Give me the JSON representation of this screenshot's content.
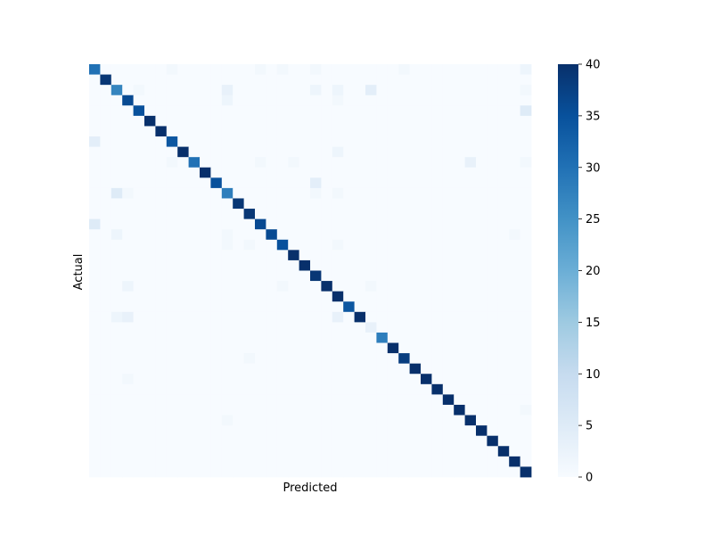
{
  "chart_data": {
    "type": "heatmap",
    "title": "",
    "xlabel": "Predicted",
    "ylabel": "Actual",
    "size": 40,
    "color_range": [
      0,
      40
    ],
    "colormap": "Blues",
    "colorbar_ticks": [
      0,
      5,
      10,
      15,
      20,
      25,
      30,
      35,
      40
    ],
    "x_tick_labels_shown": false,
    "y_tick_labels_shown": false,
    "diagonal": [
      30,
      39,
      27,
      36,
      35,
      40,
      40,
      34,
      40,
      30,
      40,
      35,
      28,
      39,
      39,
      36,
      36,
      35,
      40,
      40,
      39,
      40,
      40,
      34,
      40,
      40,
      28,
      40,
      38,
      40,
      40,
      40,
      40,
      40,
      40,
      40,
      40,
      40,
      40,
      40
    ],
    "off_diagonal": [
      [
        0,
        7,
        1
      ],
      [
        0,
        15,
        1
      ],
      [
        0,
        17,
        1
      ],
      [
        0,
        20,
        1
      ],
      [
        0,
        28,
        1
      ],
      [
        0,
        39,
        2
      ],
      [
        2,
        4,
        1
      ],
      [
        2,
        12,
        3
      ],
      [
        2,
        20,
        2
      ],
      [
        2,
        22,
        2
      ],
      [
        2,
        25,
        4
      ],
      [
        2,
        39,
        1
      ],
      [
        3,
        12,
        2
      ],
      [
        3,
        22,
        1
      ],
      [
        4,
        39,
        5
      ],
      [
        7,
        0,
        4
      ],
      [
        8,
        22,
        2
      ],
      [
        9,
        7,
        1
      ],
      [
        9,
        15,
        1
      ],
      [
        9,
        18,
        1
      ],
      [
        9,
        34,
        3
      ],
      [
        9,
        39,
        1
      ],
      [
        11,
        20,
        4
      ],
      [
        12,
        2,
        5
      ],
      [
        12,
        3,
        1
      ],
      [
        12,
        20,
        1
      ],
      [
        12,
        22,
        1
      ],
      [
        15,
        0,
        5
      ],
      [
        16,
        2,
        2
      ],
      [
        16,
        12,
        1
      ],
      [
        16,
        38,
        1
      ],
      [
        17,
        12,
        1
      ],
      [
        17,
        14,
        1
      ],
      [
        17,
        22,
        1
      ],
      [
        21,
        3,
        2
      ],
      [
        21,
        17,
        1
      ],
      [
        21,
        25,
        1
      ],
      [
        24,
        2,
        2
      ],
      [
        24,
        3,
        3
      ],
      [
        24,
        22,
        3
      ],
      [
        25,
        25,
        3
      ],
      [
        28,
        14,
        1
      ],
      [
        30,
        3,
        1
      ],
      [
        33,
        39,
        1
      ],
      [
        34,
        12,
        1
      ]
    ]
  }
}
